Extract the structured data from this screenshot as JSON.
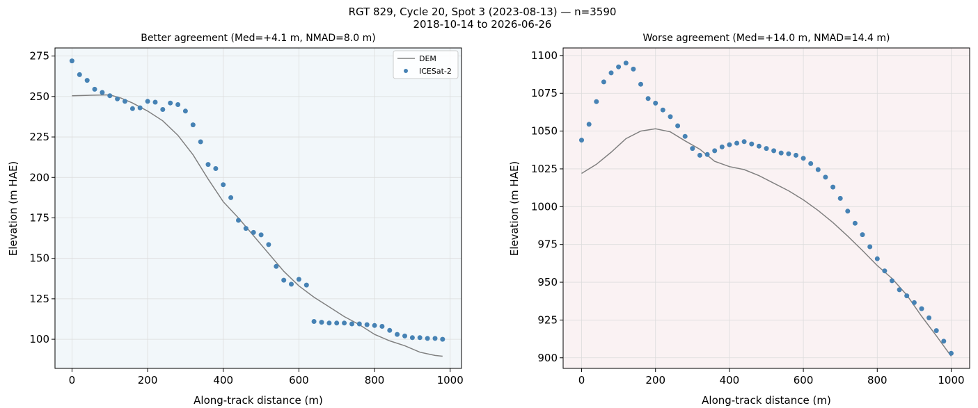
{
  "figure": {
    "title_line1": "RGT 829, Cycle 20, Spot 3 (2023-08-13) — n=3590",
    "title_line2": "2018-10-14 to 2026-06-26"
  },
  "colors": {
    "dem_line": "#808080",
    "icesat_points": "#4682b4",
    "better_title": "#1f77b4",
    "worse_title": "#d62728",
    "better_bg": "#f2f7fa",
    "worse_bg": "#faf2f3",
    "grid": "#dcdcdc"
  },
  "chart_data": [
    {
      "type": "line+scatter",
      "title": "Better agreement (Med=+4.1 m, NMAD=8.0 m)",
      "xlabel": "Along-track distance (m)",
      "ylabel": "Elevation (m HAE)",
      "xlim": [
        -45,
        1030
      ],
      "ylim": [
        82,
        280
      ],
      "xticks": [
        0,
        200,
        400,
        600,
        800,
        1000
      ],
      "yticks": [
        100,
        125,
        150,
        175,
        200,
        225,
        250,
        275
      ],
      "grid": true,
      "legend": {
        "position": "top-right",
        "entries": [
          "DEM",
          "ICESat-2"
        ]
      },
      "series": [
        {
          "name": "DEM",
          "kind": "line",
          "x": [
            0,
            50,
            100,
            130,
            160,
            200,
            240,
            280,
            320,
            360,
            400,
            440,
            480,
            520,
            560,
            600,
            640,
            680,
            720,
            760,
            800,
            840,
            880,
            920,
            960,
            980
          ],
          "y": [
            250.5,
            250.8,
            251,
            249,
            246,
            241,
            235,
            226,
            214,
            199,
            185,
            175,
            164,
            153,
            142,
            133,
            126,
            120,
            114,
            109,
            103,
            99,
            96,
            92,
            90,
            89.5
          ]
        },
        {
          "name": "ICESat-2",
          "kind": "scatter",
          "x": [
            0,
            20,
            40,
            60,
            80,
            100,
            120,
            140,
            160,
            180,
            200,
            220,
            240,
            260,
            280,
            300,
            320,
            340,
            360,
            380,
            400,
            420,
            440,
            460,
            480,
            500,
            520,
            540,
            560,
            580,
            600,
            620,
            640,
            660,
            680,
            700,
            720,
            740,
            760,
            780,
            800,
            820,
            840,
            860,
            880,
            900,
            920,
            940,
            960,
            980
          ],
          "y": [
            272,
            263.5,
            260,
            254.5,
            252.5,
            250.5,
            248.5,
            247,
            242.5,
            243,
            247,
            246.5,
            242,
            246,
            245,
            241,
            232.5,
            222,
            208,
            205.5,
            195.5,
            187.5,
            173.5,
            168.5,
            166,
            164.5,
            158.5,
            145,
            136.5,
            134,
            137,
            133.5,
            111,
            110.5,
            110,
            110,
            110,
            109.5,
            109.5,
            109,
            108.5,
            108,
            105.5,
            103,
            102,
            101,
            101,
            100.5,
            100.5,
            100
          ]
        }
      ]
    },
    {
      "type": "line+scatter",
      "title": "Worse agreement (Med=+14.0 m, NMAD=14.4 m)",
      "xlabel": "Along-track distance (m)",
      "ylabel": "Elevation (m HAE)",
      "xlim": [
        -50,
        1050
      ],
      "ylim": [
        893,
        1105
      ],
      "xticks": [
        0,
        200,
        400,
        600,
        800,
        1000
      ],
      "yticks": [
        900,
        925,
        950,
        975,
        1000,
        1025,
        1050,
        1075,
        1100
      ],
      "grid": true,
      "series": [
        {
          "name": "DEM",
          "kind": "line",
          "x": [
            0,
            40,
            80,
            120,
            160,
            200,
            240,
            280,
            320,
            360,
            400,
            440,
            480,
            520,
            560,
            600,
            640,
            680,
            720,
            760,
            800,
            840,
            880,
            920,
            960,
            1000
          ],
          "y": [
            1022,
            1028,
            1036,
            1045,
            1050,
            1051.5,
            1049.5,
            1043.5,
            1038,
            1030,
            1026.5,
            1024.5,
            1020.5,
            1015.5,
            1010.5,
            1004.5,
            997.5,
            989.5,
            980.5,
            971,
            961,
            952.5,
            941.5,
            927.5,
            914.5,
            901
          ]
        },
        {
          "name": "ICESat-2",
          "kind": "scatter",
          "x": [
            0,
            20,
            40,
            60,
            80,
            100,
            120,
            140,
            160,
            180,
            200,
            220,
            240,
            260,
            280,
            300,
            320,
            340,
            360,
            380,
            400,
            420,
            440,
            460,
            480,
            500,
            520,
            540,
            560,
            580,
            600,
            620,
            640,
            660,
            680,
            700,
            720,
            740,
            760,
            780,
            800,
            820,
            840,
            860,
            880,
            900,
            920,
            940,
            960,
            980,
            1000
          ],
          "y": [
            1044,
            1054.5,
            1069.5,
            1082.5,
            1088.5,
            1092.5,
            1095,
            1091,
            1081,
            1071.5,
            1068.5,
            1064,
            1059.5,
            1053.5,
            1046.5,
            1038.5,
            1034,
            1034.5,
            1037,
            1039.5,
            1041,
            1042,
            1043,
            1041.5,
            1040,
            1038.5,
            1037,
            1035.5,
            1035,
            1034,
            1032,
            1028.5,
            1024.5,
            1019.5,
            1013,
            1005.5,
            997,
            989,
            981.5,
            973.5,
            965.5,
            957.5,
            951,
            945,
            941,
            936.5,
            932.5,
            926.5,
            918,
            911,
            903
          ]
        }
      ]
    }
  ]
}
